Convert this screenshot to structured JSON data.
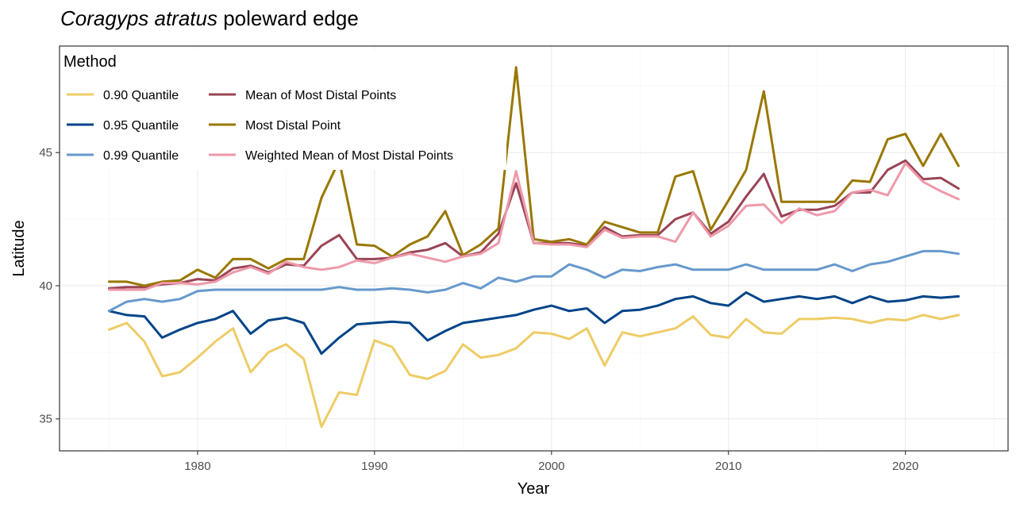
{
  "chart_data": {
    "type": "line",
    "title_italic": "Coragyps atratus",
    "title_rest": " poleward edge",
    "xlabel": "Year",
    "ylabel": "Latitude",
    "xlim": [
      1972.2,
      1975.0
    ],
    "xlim_full": [
      1972.2,
      2025.8
    ],
    "ylim": [
      33.8,
      49.0
    ],
    "x_ticks": [
      1980,
      1990,
      2000,
      2010,
      2020
    ],
    "y_ticks": [
      35,
      40,
      45
    ],
    "grid": true,
    "legend": {
      "title": "Method",
      "placement": "top-left inside"
    },
    "x": [
      1975,
      1976,
      1977,
      1978,
      1979,
      1980,
      1981,
      1982,
      1983,
      1984,
      1985,
      1986,
      1987,
      1988,
      1989,
      1990,
      1991,
      1992,
      1993,
      1994,
      1995,
      1996,
      1997,
      1998,
      1999,
      2000,
      2001,
      2002,
      2003,
      2004,
      2005,
      2006,
      2007,
      2008,
      2009,
      2010,
      2011,
      2012,
      2013,
      2014,
      2015,
      2016,
      2017,
      2018,
      2019,
      2020,
      2021,
      2022,
      2023
    ],
    "series": [
      {
        "name": "0.90 Quantile",
        "color": "#EECC66",
        "values": [
          38.35,
          38.6,
          37.9,
          36.6,
          36.75,
          37.3,
          37.9,
          38.4,
          36.75,
          37.5,
          37.8,
          37.25,
          34.7,
          36.0,
          35.9,
          37.95,
          37.7,
          36.65,
          36.5,
          36.8,
          37.8,
          37.3,
          37.4,
          37.65,
          38.25,
          38.2,
          38.0,
          38.4,
          37.0,
          38.25,
          38.1,
          38.25,
          38.4,
          38.85,
          38.15,
          38.05,
          38.75,
          38.25,
          38.2,
          38.75,
          38.75,
          38.8,
          38.75,
          38.6,
          38.75,
          38.7,
          38.9,
          38.75,
          38.9
        ]
      },
      {
        "name": "0.95 Quantile",
        "color": "#004488",
        "values": [
          39.05,
          38.9,
          38.85,
          38.05,
          38.35,
          38.6,
          38.75,
          39.05,
          38.2,
          38.7,
          38.8,
          38.6,
          37.45,
          38.05,
          38.55,
          38.6,
          38.65,
          38.6,
          37.95,
          38.3,
          38.6,
          38.7,
          38.8,
          38.9,
          39.1,
          39.25,
          39.05,
          39.15,
          38.6,
          39.05,
          39.1,
          39.25,
          39.5,
          39.6,
          39.35,
          39.25,
          39.75,
          39.4,
          39.5,
          39.6,
          39.5,
          39.6,
          39.35,
          39.6,
          39.4,
          39.45,
          39.6,
          39.55,
          39.6
        ]
      },
      {
        "name": "0.99 Quantile",
        "color": "#6699CC",
        "values": [
          39.05,
          39.4,
          39.5,
          39.4,
          39.5,
          39.8,
          39.85,
          39.85,
          39.85,
          39.85,
          39.85,
          39.85,
          39.85,
          39.95,
          39.85,
          39.85,
          39.9,
          39.85,
          39.75,
          39.85,
          40.1,
          39.9,
          40.3,
          40.15,
          40.35,
          40.35,
          40.8,
          40.6,
          40.3,
          40.6,
          40.55,
          40.7,
          40.8,
          40.6,
          40.6,
          40.6,
          40.8,
          40.6,
          40.6,
          40.6,
          40.6,
          40.8,
          40.55,
          40.8,
          40.9,
          41.1,
          41.3,
          41.3,
          41.2
        ]
      },
      {
        "name": "Mean of Most Distal Points",
        "color": "#994455",
        "values": [
          39.9,
          39.95,
          39.95,
          40.05,
          40.1,
          40.25,
          40.2,
          40.65,
          40.75,
          40.5,
          40.8,
          40.75,
          41.5,
          41.9,
          41.0,
          41.0,
          41.05,
          41.25,
          41.35,
          41.6,
          41.1,
          41.25,
          41.95,
          43.85,
          41.6,
          41.6,
          41.6,
          41.5,
          42.2,
          41.85,
          41.9,
          41.9,
          42.5,
          42.75,
          41.95,
          42.4,
          43.35,
          44.2,
          42.6,
          42.85,
          42.85,
          43.0,
          43.5,
          43.5,
          44.35,
          44.7,
          44.0,
          44.05,
          43.65
        ]
      },
      {
        "name": "Most Distal Point",
        "color": "#997700",
        "values": [
          40.15,
          40.15,
          40.0,
          40.15,
          40.2,
          40.6,
          40.3,
          41.0,
          41.0,
          40.65,
          41.0,
          41.0,
          43.3,
          44.7,
          41.55,
          41.5,
          41.1,
          41.55,
          41.85,
          42.8,
          41.15,
          41.55,
          42.15,
          48.2,
          41.75,
          41.65,
          41.75,
          41.55,
          42.4,
          42.2,
          42.0,
          42.0,
          44.1,
          44.3,
          42.1,
          43.2,
          44.35,
          47.3,
          43.15,
          43.15,
          43.15,
          43.15,
          43.95,
          43.9,
          45.5,
          45.7,
          44.5,
          45.7,
          44.5
        ]
      },
      {
        "name": "Weighted Mean of Most Distal Points",
        "color": "#EE99AA",
        "values": [
          39.85,
          39.85,
          39.85,
          40.1,
          40.1,
          40.05,
          40.15,
          40.5,
          40.7,
          40.45,
          40.9,
          40.7,
          40.6,
          40.7,
          40.95,
          40.85,
          41.05,
          41.2,
          41.05,
          40.9,
          41.1,
          41.2,
          41.6,
          44.3,
          41.6,
          41.55,
          41.55,
          41.45,
          42.1,
          41.8,
          41.85,
          41.85,
          41.65,
          42.75,
          41.85,
          42.25,
          43.0,
          43.05,
          42.35,
          42.9,
          42.65,
          42.8,
          43.5,
          43.6,
          43.4,
          44.6,
          43.9,
          43.55,
          43.25
        ]
      }
    ]
  }
}
